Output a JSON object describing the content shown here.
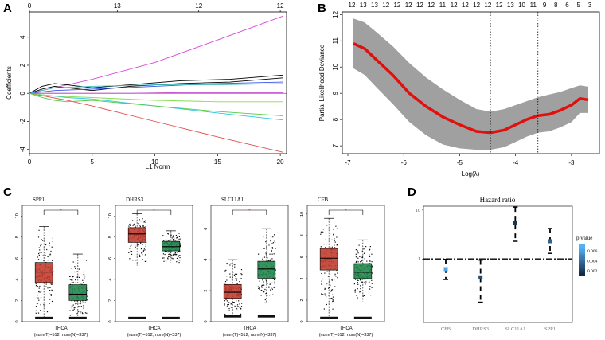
{
  "panel_labels": {
    "a": "A",
    "b": "B",
    "c": "C",
    "d": "D"
  },
  "chart_data": [
    {
      "type": "line",
      "panel": "A",
      "title": "",
      "xlabel": "L1 Norm",
      "ylabel": "Coefficients",
      "xlim": [
        0,
        20.5
      ],
      "ylim": [
        -4.3,
        5.8
      ],
      "xticks": [
        "0",
        "5",
        "10",
        "15",
        "20"
      ],
      "yticks": [
        "-4",
        "-2",
        "0",
        "2",
        "4"
      ],
      "top_axis_values": [
        0,
        7,
        13.5,
        20
      ],
      "top_axis_labels": [
        "0",
        "13",
        "12",
        "12"
      ],
      "series": [
        {
          "name": "magenta",
          "color": "#d946d9",
          "x": [
            0,
            1,
            5,
            10,
            15,
            20.2
          ],
          "y": [
            0,
            0.2,
            1.0,
            2.2,
            3.8,
            5.5
          ]
        },
        {
          "name": "black1",
          "color": "#000000",
          "x": [
            0,
            1,
            2,
            3,
            5,
            8,
            12,
            16,
            20.2
          ],
          "y": [
            0,
            0.5,
            0.7,
            0.6,
            0.4,
            0.6,
            0.9,
            1.0,
            1.3
          ]
        },
        {
          "name": "black2",
          "color": "#000000",
          "x": [
            0,
            1,
            2,
            3,
            5,
            8,
            12,
            16,
            20.2
          ],
          "y": [
            0,
            0.3,
            0.5,
            0.4,
            0.2,
            0.5,
            0.7,
            0.8,
            1.1
          ]
        },
        {
          "name": "blue",
          "color": "#3355ee",
          "x": [
            0,
            2,
            5,
            10,
            15,
            20.2
          ],
          "y": [
            0,
            0.2,
            0.3,
            0.5,
            0.7,
            0.8
          ]
        },
        {
          "name": "cyan",
          "color": "#2dc6e6",
          "x": [
            0,
            3,
            5,
            10,
            15,
            20.2
          ],
          "y": [
            0,
            -0.3,
            -0.4,
            -0.9,
            -1.4,
            -1.9
          ]
        },
        {
          "name": "red",
          "color": "#e05050",
          "x": [
            0,
            3,
            5,
            10,
            15,
            20.2
          ],
          "y": [
            0,
            -0.5,
            -0.9,
            -2.0,
            -3.1,
            -4.2
          ]
        },
        {
          "name": "green",
          "color": "#55cc44",
          "x": [
            0,
            1,
            2,
            3,
            5,
            10,
            15,
            20.2
          ],
          "y": [
            0,
            -0.3,
            -0.5,
            -0.6,
            -0.5,
            -0.9,
            -1.3,
            -1.6
          ]
        },
        {
          "name": "lightgreen",
          "color": "#88dd55",
          "x": [
            0,
            2,
            5,
            10,
            15,
            20.2
          ],
          "y": [
            0,
            -0.2,
            -0.3,
            -0.5,
            -0.6,
            -0.6
          ]
        },
        {
          "name": "purple",
          "color": "#c044cc",
          "x": [
            0,
            4,
            8,
            12,
            16,
            20.2
          ],
          "y": [
            0,
            0,
            0,
            0.05,
            0.05,
            0.05
          ]
        },
        {
          "name": "teal",
          "color": "#44bbbb",
          "x": [
            0,
            2,
            5,
            10,
            15,
            20.2
          ],
          "y": [
            0,
            0.4,
            0.5,
            0.6,
            0.6,
            0.7
          ]
        }
      ]
    },
    {
      "type": "area",
      "panel": "B",
      "title": "",
      "xlabel": "Log(λ)",
      "ylabel": "Partial Likelihood Deviance",
      "xlim": [
        -7.1,
        -2.5
      ],
      "ylim": [
        6.7,
        12.1
      ],
      "xticks": [
        "-7",
        "-6",
        "-5",
        "-4",
        "-3"
      ],
      "yticks": [
        "7",
        "8",
        "9",
        "10",
        "11",
        "12"
      ],
      "top_axis_labels": [
        "12",
        "13",
        "13",
        "12",
        "12",
        "12",
        "12",
        "12",
        "11",
        "12",
        "12",
        "12",
        "12",
        "12",
        "13",
        "10",
        "11",
        "9",
        "8",
        "6",
        "5",
        "3"
      ],
      "vlines": [
        -4.45,
        -3.6
      ],
      "x": [
        -6.9,
        -6.7,
        -6.5,
        -6.2,
        -5.9,
        -5.6,
        -5.3,
        -5.0,
        -4.7,
        -4.45,
        -4.2,
        -4.0,
        -3.8,
        -3.6,
        -3.4,
        -3.2,
        -3.0,
        -2.85,
        -2.7
      ],
      "y": [
        10.9,
        10.7,
        10.3,
        9.7,
        9.0,
        8.5,
        8.1,
        7.8,
        7.55,
        7.5,
        7.6,
        7.8,
        8.0,
        8.15,
        8.2,
        8.35,
        8.55,
        8.8,
        8.75
      ],
      "upper": [
        11.85,
        11.7,
        11.35,
        10.8,
        10.15,
        9.6,
        9.15,
        8.75,
        8.4,
        8.3,
        8.4,
        8.55,
        8.7,
        8.85,
        8.95,
        9.05,
        9.2,
        9.3,
        9.25
      ],
      "lower": [
        9.95,
        9.7,
        9.25,
        8.6,
        7.9,
        7.4,
        7.05,
        6.9,
        6.85,
        6.85,
        6.95,
        7.15,
        7.35,
        7.5,
        7.55,
        7.7,
        7.9,
        8.25,
        8.25
      ]
    },
    {
      "type": "box",
      "panel": "C",
      "charts": [
        {
          "gene": "SPP1",
          "dataset": "THCA",
          "footnote": "(num(T)=512; num(N)=337)",
          "sig": "*",
          "ylim": [
            0,
            11
          ],
          "yticks": [
            "0",
            "2",
            "4",
            "6",
            "8",
            "10"
          ],
          "tumor": {
            "min": 0.3,
            "q1": 3.7,
            "median": 4.7,
            "q3": 5.6,
            "max": 9.0
          },
          "normal": {
            "min": 0.3,
            "q1": 2.0,
            "median": 2.6,
            "q3": 3.5,
            "max": 6.4
          }
        },
        {
          "gene": "DHRS3",
          "dataset": "THCA",
          "footnote": "(num(T)=512; num(N)=337)",
          "sig": "*",
          "ylim": [
            0,
            11
          ],
          "yticks": [
            "0",
            "2",
            "4",
            "6",
            "8",
            "10"
          ],
          "tumor": {
            "min": 5.3,
            "q1": 7.5,
            "median": 8.3,
            "q3": 8.9,
            "max": 10.2
          },
          "normal": {
            "min": 5.6,
            "q1": 6.7,
            "median": 7.1,
            "q3": 7.6,
            "max": 8.6
          }
        },
        {
          "gene": "SLC11A1",
          "dataset": "THCA",
          "footnote": "(num(T)=512; num(N)=337)",
          "sig": "*",
          "ylim": [
            0,
            7.5
          ],
          "yticks": [
            "0",
            "2",
            "4",
            "6"
          ],
          "tumor": {
            "min": 0.3,
            "q1": 1.5,
            "median": 1.9,
            "q3": 2.4,
            "max": 4.0
          },
          "normal": {
            "min": 1.2,
            "q1": 2.8,
            "median": 3.4,
            "q3": 3.9,
            "max": 6.0
          }
        },
        {
          "gene": "CFB",
          "dataset": "THCA",
          "footnote": "(num(T)=512; num(N)=337)",
          "sig": "*",
          "ylim": [
            0,
            10.8
          ],
          "yticks": [
            "0",
            "2",
            "4",
            "6",
            "8",
            "10"
          ],
          "tumor": {
            "min": 0.3,
            "q1": 4.8,
            "median": 5.9,
            "q3": 6.8,
            "max": 9.6
          },
          "normal": {
            "min": 1.9,
            "q1": 4.0,
            "median": 4.6,
            "q3": 5.4,
            "max": 7.6
          }
        }
      ],
      "tumor_color": "#c0392b",
      "normal_color": "#1e8449"
    },
    {
      "type": "scatter",
      "panel": "D",
      "title": "Hazard ratio",
      "categories": [
        "CFB",
        "DHRS3",
        "SLC11A1",
        "SPP1"
      ],
      "yscale": "log",
      "ylim": [
        0.05,
        12
      ],
      "yticks": [
        "1",
        "10"
      ],
      "hr": [
        0.62,
        0.42,
        5.5,
        2.3
      ],
      "ci_low": [
        0.38,
        0.13,
        2.3,
        1.3
      ],
      "ci_high": [
        0.98,
        0.95,
        11.5,
        4.2
      ],
      "pvalue": [
        0.0065,
        0.0025,
        0.0015,
        0.0035
      ],
      "legend_title": "p.value",
      "legend_ticks": [
        "0.006",
        "0.004",
        "0.002"
      ],
      "reference_line": 1
    }
  ]
}
